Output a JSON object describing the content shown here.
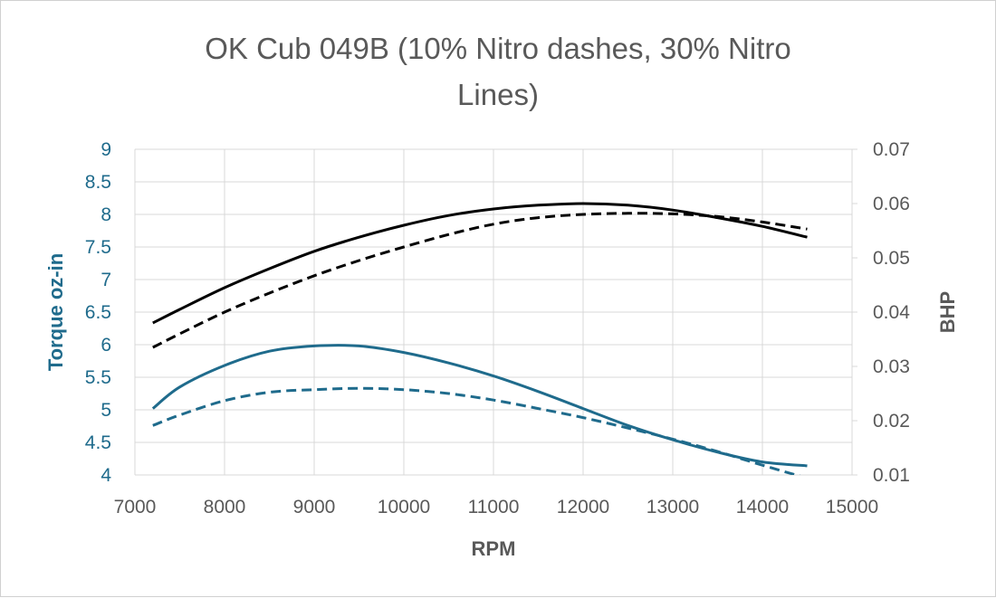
{
  "chart_data": {
    "type": "line",
    "title_lines": [
      "OK Cub 049B (10% Nitro dashes, 30% Nitro",
      "Lines)"
    ],
    "xlabel": "RPM",
    "ylabel_left": "Torque oz-in",
    "ylabel_right": "BHP",
    "xlim": [
      7000,
      15000
    ],
    "ylim_left": [
      4,
      9
    ],
    "ylim_right": [
      0.01,
      0.07
    ],
    "x_ticks": [
      7000,
      8000,
      9000,
      10000,
      11000,
      12000,
      13000,
      14000,
      15000
    ],
    "y_left_ticks": [
      "4",
      "4.5",
      "5",
      "5.5",
      "6",
      "6.5",
      "7",
      "7.5",
      "8",
      "8.5",
      "9"
    ],
    "y_right_ticks": [
      "0.01",
      "0.02",
      "0.03",
      "0.04",
      "0.05",
      "0.06",
      "0.07"
    ],
    "grid": true,
    "x": [
      7200,
      7500,
      8000,
      8500,
      9000,
      9500,
      10000,
      10500,
      11000,
      11500,
      12000,
      12500,
      13000,
      13500,
      14000,
      14500
    ],
    "colors": {
      "torque": "#1f6b8c",
      "bhp": "#000000",
      "grid": "#d9d9d9"
    },
    "series": [
      {
        "axis": "right",
        "style": "solid",
        "color": "#000000",
        "values": [
          0.038,
          0.0405,
          0.0445,
          0.048,
          0.0512,
          0.0538,
          0.056,
          0.0578,
          0.059,
          0.0597,
          0.06,
          0.0597,
          0.0588,
          0.0574,
          0.0558,
          0.0538
        ]
      },
      {
        "axis": "right",
        "style": "dashed",
        "color": "#000000",
        "values": [
          0.0335,
          0.036,
          0.04,
          0.0435,
          0.0467,
          0.0495,
          0.052,
          0.0543,
          0.0562,
          0.0574,
          0.058,
          0.0582,
          0.0581,
          0.0576,
          0.0566,
          0.0553
        ]
      },
      {
        "axis": "left",
        "style": "solid",
        "color": "#1f6b8c",
        "values": [
          5.02,
          5.35,
          5.68,
          5.9,
          5.98,
          5.98,
          5.88,
          5.72,
          5.52,
          5.28,
          5.02,
          4.76,
          4.54,
          4.35,
          4.2,
          4.14
        ]
      },
      {
        "axis": "left",
        "style": "dashed",
        "color": "#1f6b8c",
        "values": [
          4.76,
          4.92,
          5.14,
          5.27,
          5.31,
          5.33,
          5.31,
          5.25,
          5.15,
          5.02,
          4.88,
          4.72,
          4.55,
          4.36,
          4.15,
          3.95
        ]
      }
    ]
  }
}
